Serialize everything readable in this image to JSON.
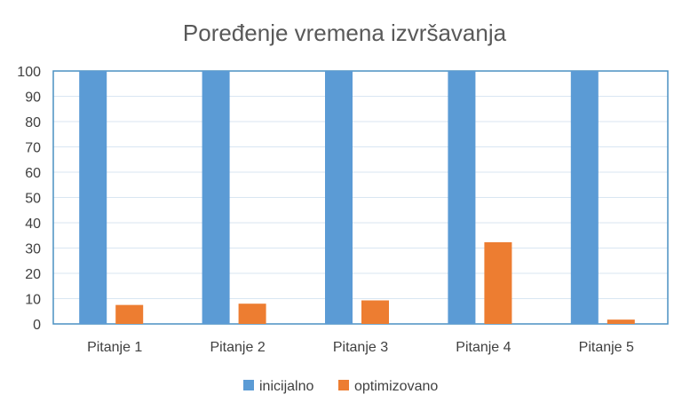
{
  "chart_data": {
    "type": "bar",
    "title": "Poređenje vremena izvršavanja",
    "categories": [
      "Pitanje 1",
      "Pitanje 2",
      "Pitanje 3",
      "Pitanje 4",
      "Pitanje 5"
    ],
    "series": [
      {
        "name": "inicijalno",
        "color": "#5B9BD5",
        "values": [
          100,
          100,
          100,
          100,
          100
        ]
      },
      {
        "name": "optimizovano",
        "color": "#ED7D31",
        "values": [
          7.5,
          8,
          9.3,
          32.3,
          1.7
        ]
      }
    ],
    "ylim": [
      0,
      100
    ],
    "yticks": [
      0,
      10,
      20,
      30,
      40,
      50,
      60,
      70,
      80,
      90,
      100
    ],
    "grid": true,
    "legend_position": "bottom"
  }
}
